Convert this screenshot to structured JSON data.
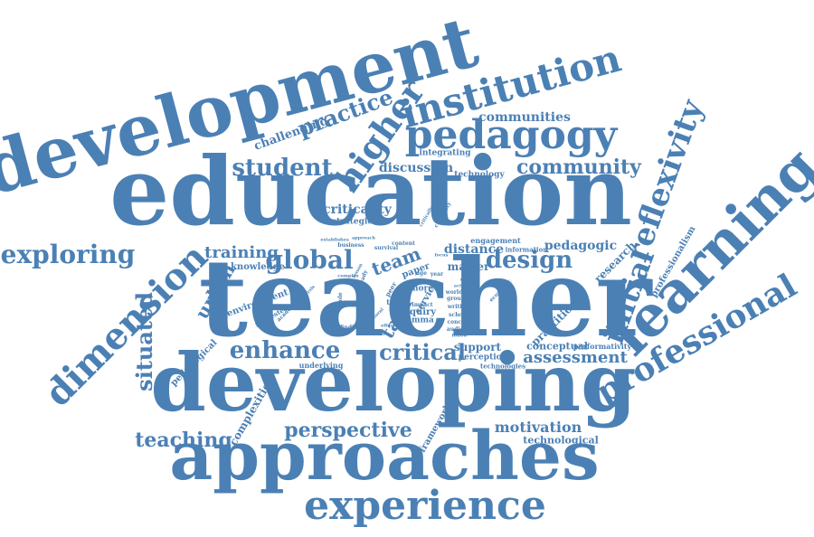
{
  "words": {
    "teacher": "teacher",
    "education": "education",
    "development": "development",
    "developing": "developing",
    "approaches": "approaches",
    "experience": "experience",
    "learning": "learning",
    "institution": "institution",
    "pedagogy": "pedagogy",
    "higher": "higher",
    "reflexivity": "reflexivity",
    "professional": "professional",
    "dimension": "dimension",
    "initial": "initial",
    "exploring": "exploring",
    "student": "student",
    "community": "community",
    "communities": "communities",
    "practice": "practice",
    "challenging": "challenging",
    "discussion": "discussion",
    "integrating": "integrating",
    "technology": "technology",
    "criticality": "criticality",
    "strategies": "strategies",
    "training": "training",
    "global": "global",
    "design": "design",
    "team": "team",
    "task": "task",
    "urban": "urban",
    "situated": "situated",
    "enhance": "enhance",
    "critical": "critical",
    "assessment": "assessment",
    "perspective": "perspective",
    "teaching": "teaching",
    "motivation": "motivation",
    "technological": "technological",
    "framework": "framework",
    "complexities": "complexities",
    "pedagogical": "pedagogical",
    "underlying": "underlying",
    "environment": "environment",
    "knowledge": "knowledge",
    "distance": "distance",
    "master": "master",
    "engagement": "engagement",
    "information": "information",
    "pedagogic": "pedagogic",
    "research": "research",
    "professionalism": "professionalism",
    "practitioner": "practitioner",
    "support": "support",
    "perception": "perception",
    "technologies": "technologies",
    "conceptual": "conceptual",
    "performativity": "performativity",
    "paper": "paper",
    "service": "service",
    "inquiry": "inquiry",
    "dilemma": "dilemma",
    "finding": "finding",
    "writing": "writing",
    "school": "school",
    "concern": "concern",
    "audience": "audience",
    "business": "business",
    "establishes": "establishes",
    "content": "content",
    "survival": "survival",
    "interested": "interested",
    "academy": "academy",
    "participation": "participation",
    "creativity": "creativity",
    "economic": "economic",
    "group": "group",
    "world": "world",
    "active": "active",
    "impact": "impact",
    "term": "term",
    "more": "more",
    "approach": "approach",
    "lesson": "lesson",
    "peer": "peer",
    "complex": "complex",
    "policy": "policy",
    "role": "role",
    "ready": "ready",
    "effective": "effective",
    "critically": "critically",
    "analysis": "analysis",
    "age": "age",
    "year": "year",
    "needs": "needs",
    "cultural": "cultural",
    "focus": "focus",
    "follow": "follow"
  },
  "colors": {
    "word": "#4b80b4",
    "background": "#ffffff"
  }
}
